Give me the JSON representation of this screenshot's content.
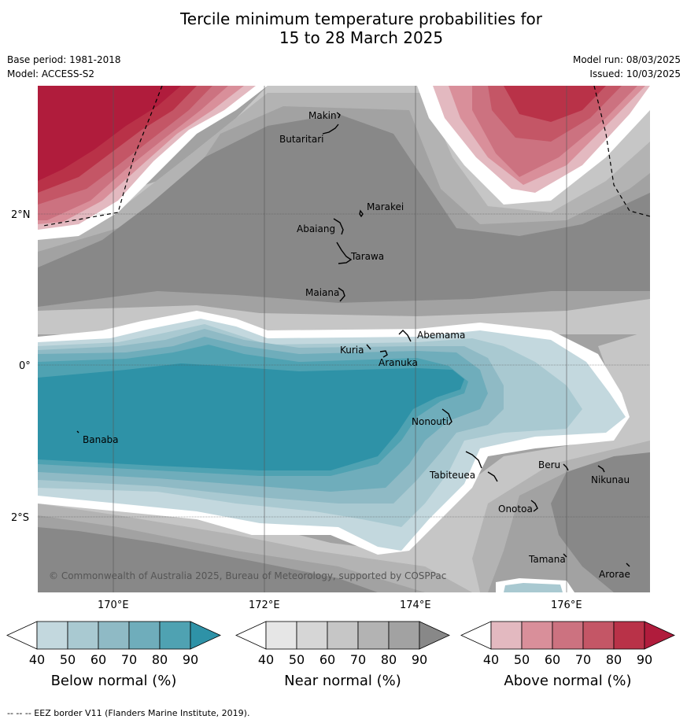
{
  "title": {
    "line1": "Tercile minimum temperature probabilities for",
    "line2": "15 to 28 March 2025"
  },
  "meta": {
    "base_period": "Base period: 1981-2018",
    "model": "Model: ACCESS-S2",
    "model_run": "Model run: 08/03/2025",
    "issued": "Issued: 10/03/2025"
  },
  "map": {
    "lat_labels": [
      "2°N",
      "0°",
      "2°S"
    ],
    "lon_labels": [
      "170°E",
      "172°E",
      "174°E",
      "176°E"
    ],
    "islands": [
      "Makin",
      "Butaritari",
      "Marakei",
      "Abaiang",
      "Tarawa",
      "Maiana",
      "Abemama",
      "Kuria",
      "Aranuka",
      "Banaba",
      "Nonouti",
      "Tabiteuea",
      "Beru",
      "Nikunau",
      "Onotoa",
      "Tamana",
      "Arorae"
    ],
    "copyright": "© Commonwealth of Australia 2025, Bureau of Meteorology, supported by COSPPac",
    "colors": {
      "below": [
        "#c3d8de",
        "#a9c9d1",
        "#8fbac5",
        "#6fadbb",
        "#4fa2b2",
        "#2e92a7"
      ],
      "near": [
        "#e6e6e6",
        "#d6d6d6",
        "#c6c6c6",
        "#b3b3b3",
        "#a2a2a2",
        "#888888"
      ],
      "above": [
        "#e3b9c0",
        "#d98f9a",
        "#cc7280",
        "#c45666",
        "#b93248",
        "#b01c3c"
      ]
    }
  },
  "legends": [
    {
      "label": "Below normal (%)",
      "ticks": [
        "40",
        "50",
        "60",
        "70",
        "80",
        "90"
      ]
    },
    {
      "label": "Near normal (%)",
      "ticks": [
        "40",
        "50",
        "60",
        "70",
        "80",
        "90"
      ]
    },
    {
      "label": "Above normal (%)",
      "ticks": [
        "40",
        "50",
        "60",
        "70",
        "80",
        "90"
      ]
    }
  ],
  "footer": "--  --  -- EEZ border V11 (Flanders Marine Institute, 2019)."
}
